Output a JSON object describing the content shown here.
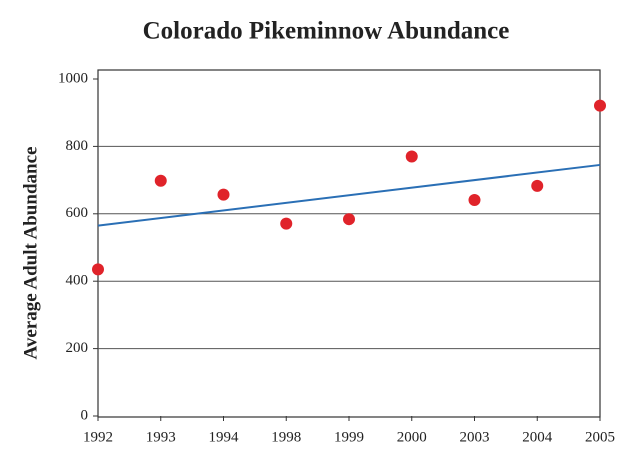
{
  "chart_data": {
    "type": "scatter",
    "title": "Colorado Pikeminnow Abundance",
    "y_label": "Average Adult Abundance",
    "categories": [
      "1992",
      "1993",
      "1994",
      "1998",
      "1999",
      "2000",
      "2003",
      "2004",
      "2005"
    ],
    "values": [
      435,
      698,
      657,
      571,
      584,
      770,
      641,
      683,
      921
    ],
    "color": "#e0232a",
    "trendline": {
      "start": 565,
      "end": 745,
      "color": "#2a6fb5"
    },
    "ylim": [
      0,
      1000
    ],
    "yticks": [
      0,
      200,
      400,
      600,
      800,
      1000
    ],
    "grid": true
  }
}
